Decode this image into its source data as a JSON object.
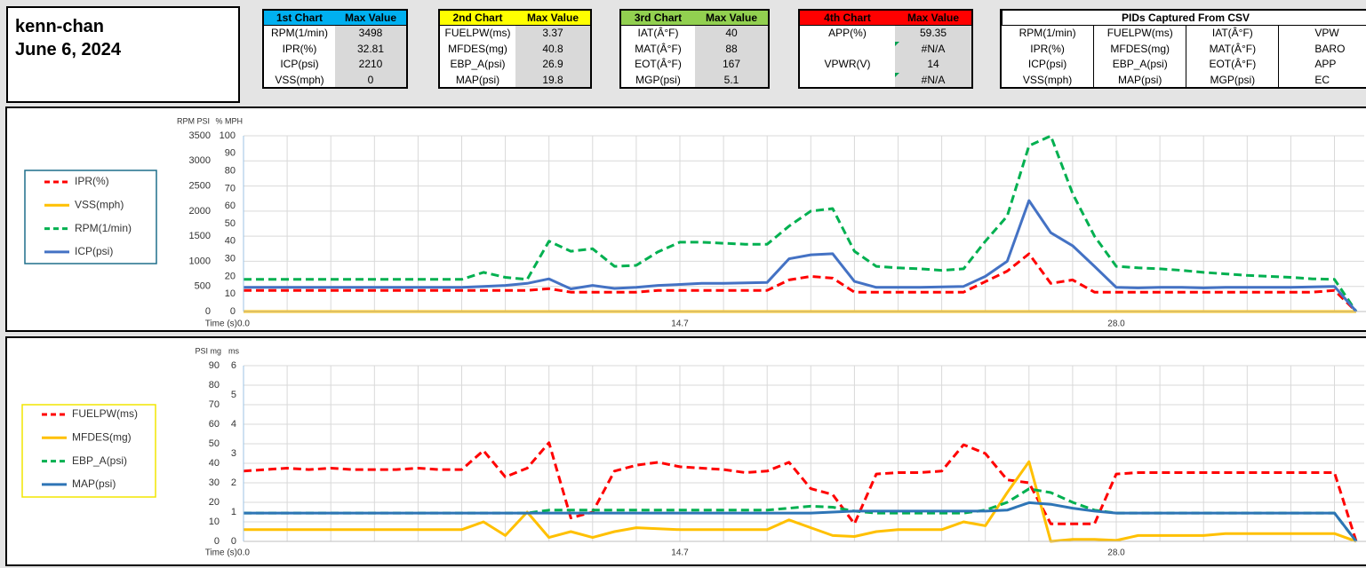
{
  "header": {
    "name": "kenn-chan",
    "date": "June 6, 2024"
  },
  "summary_tables": [
    {
      "title": "1st Chart",
      "value_header": "Max Value",
      "color": "#00b0f0",
      "rows": [
        [
          "RPM(1/min)",
          3498
        ],
        [
          "IPR(%)",
          32.81
        ],
        [
          "ICP(psi)",
          2210
        ],
        [
          "VSS(mph)",
          0
        ]
      ]
    },
    {
      "title": "2nd Chart",
      "value_header": "Max Value",
      "color": "#ffff00",
      "rows": [
        [
          "FUELPW(ms)",
          3.37
        ],
        [
          "MFDES(mg)",
          40.8
        ],
        [
          "EBP_A(psi)",
          26.9
        ],
        [
          "MAP(psi)",
          19.8
        ]
      ]
    },
    {
      "title": "3rd Chart",
      "value_header": "Max Value",
      "color": "#92d050",
      "rows": [
        [
          "IAT(Â°F)",
          40
        ],
        [
          "MAT(Â°F)",
          88
        ],
        [
          "EOT(Â°F)",
          167
        ],
        [
          "MGP(psi)",
          5.1
        ]
      ]
    },
    {
      "title": "4th Chart",
      "value_header": "Max Value",
      "color": "#ff0000",
      "rows": [
        [
          "APP(%)",
          59.35
        ],
        [
          null,
          "#N/A"
        ],
        [
          "VPWR(V)",
          14
        ],
        [
          null,
          "#N/A"
        ]
      ]
    }
  ],
  "pid_table": {
    "title": "PIDs Captured From CSV",
    "rows": [
      [
        "RPM(1/min)",
        "FUELPW(ms)",
        "IAT(Â°F)",
        "VPW"
      ],
      [
        "IPR(%)",
        "MFDES(mg)",
        "MAT(Â°F)",
        "BARO"
      ],
      [
        "ICP(psi)",
        "EBP_A(psi)",
        "EOT(Â°F)",
        "APP"
      ],
      [
        "VSS(mph)",
        "MAP(psi)",
        "MGP(psi)",
        "EC"
      ]
    ]
  },
  "chart_data": [
    {
      "type": "line",
      "y_axis_label": "RPM PSI",
      "y2_axis_label": "% MPH",
      "x_axis_label": "Time (s)",
      "categories": [
        "0.0",
        null,
        null,
        null,
        null,
        null,
        null,
        null,
        null,
        null,
        null,
        null,
        null,
        null,
        null,
        null,
        null,
        null,
        null,
        null,
        "14.7",
        null,
        null,
        null,
        null,
        null,
        null,
        null,
        null,
        null,
        null,
        null,
        null,
        null,
        null,
        null,
        null,
        null,
        null,
        null,
        "28.0",
        null,
        null,
        null,
        null,
        null,
        null,
        null,
        null,
        null,
        null,
        null
      ],
      "ylim": [
        0,
        3500
      ],
      "yticks": [
        0,
        500,
        1000,
        1500,
        2000,
        2500,
        3000,
        3500
      ],
      "y2lim": [
        0,
        100
      ],
      "y2ticks": [
        0,
        10,
        20,
        30,
        40,
        50,
        60,
        70,
        80,
        90,
        100
      ],
      "grid": true,
      "legend": "left",
      "legend_color": "#1f6f8b",
      "series": [
        {
          "name": "IPR(%)",
          "color": "#ff0000",
          "dashed": true,
          "axis": "y2",
          "values": [
            12,
            12,
            12,
            12,
            12,
            12,
            12,
            12,
            12,
            12,
            12,
            12,
            12,
            12,
            13,
            11,
            11,
            11,
            11,
            12,
            12,
            12,
            12,
            12,
            12,
            18,
            20,
            19,
            11,
            11,
            11,
            11,
            11,
            11,
            17,
            23,
            32.81,
            16,
            18,
            11,
            11,
            11,
            11,
            11,
            11,
            11,
            11,
            11,
            11,
            11,
            12,
            0
          ]
        },
        {
          "name": "VSS(mph)",
          "color": "#ffc000",
          "dashed": false,
          "axis": "y2",
          "values": [
            0,
            0,
            0,
            0,
            0,
            0,
            0,
            0,
            0,
            0,
            0,
            0,
            0,
            0,
            0,
            0,
            0,
            0,
            0,
            0,
            0,
            0,
            0,
            0,
            0,
            0,
            0,
            0,
            0,
            0,
            0,
            0,
            0,
            0,
            0,
            0,
            0,
            0,
            0,
            0,
            0,
            0,
            0,
            0,
            0,
            0,
            0,
            0,
            0,
            0,
            0,
            0
          ]
        },
        {
          "name": "RPM(1/min)",
          "color": "#00b050",
          "dashed": true,
          "axis": "y",
          "values": [
            640,
            640,
            640,
            640,
            640,
            640,
            640,
            640,
            640,
            640,
            640,
            780,
            680,
            640,
            1400,
            1200,
            1250,
            900,
            920,
            1190,
            1380,
            1380,
            1360,
            1340,
            1340,
            1700,
            2000,
            2050,
            1200,
            900,
            870,
            850,
            820,
            850,
            1400,
            1900,
            3300,
            3498,
            2350,
            1500,
            900,
            870,
            850,
            820,
            780,
            750,
            720,
            700,
            680,
            650,
            640,
            0
          ]
        },
        {
          "name": "ICP(psi)",
          "color": "#4472c4",
          "dashed": false,
          "axis": "y",
          "values": [
            480,
            480,
            480,
            480,
            480,
            480,
            480,
            480,
            480,
            480,
            480,
            500,
            520,
            560,
            650,
            450,
            520,
            460,
            480,
            520,
            540,
            560,
            560,
            570,
            580,
            1050,
            1130,
            1150,
            600,
            480,
            480,
            480,
            490,
            500,
            700,
            1000,
            2210,
            1570,
            1310,
            900,
            480,
            470,
            480,
            480,
            470,
            480,
            480,
            480,
            480,
            490,
            500,
            0
          ]
        }
      ]
    },
    {
      "type": "line",
      "y_axis_label": "PSI mg",
      "y2_axis_label": "ms",
      "x_axis_label": "Time (s)",
      "categories": [
        "0.0",
        null,
        null,
        null,
        null,
        null,
        null,
        null,
        null,
        null,
        null,
        null,
        null,
        null,
        null,
        null,
        null,
        null,
        null,
        null,
        "14.7",
        null,
        null,
        null,
        null,
        null,
        null,
        null,
        null,
        null,
        null,
        null,
        null,
        null,
        null,
        null,
        null,
        null,
        null,
        null,
        "28.0",
        null,
        null,
        null,
        null,
        null,
        null,
        null,
        null,
        null,
        null,
        null
      ],
      "ylim": [
        0,
        90
      ],
      "yticks": [
        0,
        10,
        20,
        30,
        40,
        50,
        60,
        70,
        80,
        90
      ],
      "y2lim": [
        0,
        6
      ],
      "y2ticks": [
        0,
        1,
        2,
        3,
        4,
        5,
        6
      ],
      "grid": true,
      "legend": "left",
      "legend_color": "#f2e600",
      "series": [
        {
          "name": "FUELPW(ms)",
          "color": "#ff0000",
          "dashed": true,
          "axis": "y2",
          "values": [
            2.4,
            2.45,
            2.5,
            2.45,
            2.5,
            2.45,
            2.45,
            2.45,
            2.5,
            2.45,
            2.45,
            3.1,
            2.2,
            2.5,
            3.37,
            0.8,
            1.0,
            2.4,
            2.6,
            2.7,
            2.55,
            2.5,
            2.45,
            2.35,
            2.4,
            2.7,
            1.8,
            1.6,
            0.6,
            2.3,
            2.35,
            2.35,
            2.4,
            3.3,
            3.0,
            2.1,
            2.0,
            0.6,
            0.6,
            0.6,
            2.3,
            2.35,
            2.35,
            2.35,
            2.35,
            2.35,
            2.35,
            2.35,
            2.35,
            2.35,
            2.35,
            0
          ]
        },
        {
          "name": "MFDES(mg)",
          "color": "#ffc000",
          "dashed": false,
          "axis": "y",
          "values": [
            6,
            6,
            6,
            6,
            6,
            6,
            6,
            6,
            6,
            6,
            6,
            10,
            3,
            15,
            2,
            5,
            2,
            5,
            7,
            6.5,
            6,
            6,
            6,
            6,
            6,
            11,
            7,
            3,
            2.5,
            5,
            6,
            6,
            6,
            10,
            8,
            25,
            40.8,
            0,
            1,
            1,
            0.5,
            3,
            3,
            3,
            3,
            4,
            4,
            4,
            4,
            4,
            4,
            0
          ]
        },
        {
          "name": "EBP_A(psi)",
          "color": "#00b050",
          "dashed": true,
          "axis": "y",
          "values": [
            14.5,
            14.5,
            14.5,
            14.5,
            14.5,
            14.5,
            14.5,
            14.5,
            14.5,
            14.5,
            14.5,
            14.5,
            14.5,
            14.5,
            16,
            16,
            16,
            16,
            16,
            16,
            16,
            16,
            16,
            16,
            16,
            17,
            18,
            17.5,
            15.5,
            14.5,
            14.5,
            14.5,
            14.5,
            14.5,
            16,
            20,
            26.9,
            25,
            20,
            16,
            14.5,
            14.5,
            14.5,
            14.5,
            14.5,
            14.5,
            14.5,
            14.5,
            14.5,
            14.5,
            14.5,
            0
          ]
        },
        {
          "name": "MAP(psi)",
          "color": "#2e75b6",
          "dashed": false,
          "axis": "y",
          "values": [
            14.5,
            14.5,
            14.5,
            14.5,
            14.5,
            14.5,
            14.5,
            14.5,
            14.5,
            14.5,
            14.5,
            14.5,
            14.5,
            14.5,
            14.5,
            14.5,
            14.5,
            14.5,
            14.5,
            14.5,
            14.5,
            14.5,
            14.5,
            14.5,
            14.5,
            14.5,
            14.5,
            15,
            15.5,
            15.5,
            15.5,
            15.5,
            15.5,
            15.5,
            15.5,
            16,
            19.8,
            19,
            17,
            15.5,
            14.5,
            14.5,
            14.5,
            14.5,
            14.5,
            14.5,
            14.5,
            14.5,
            14.5,
            14.5,
            14.5,
            0
          ]
        }
      ]
    }
  ]
}
